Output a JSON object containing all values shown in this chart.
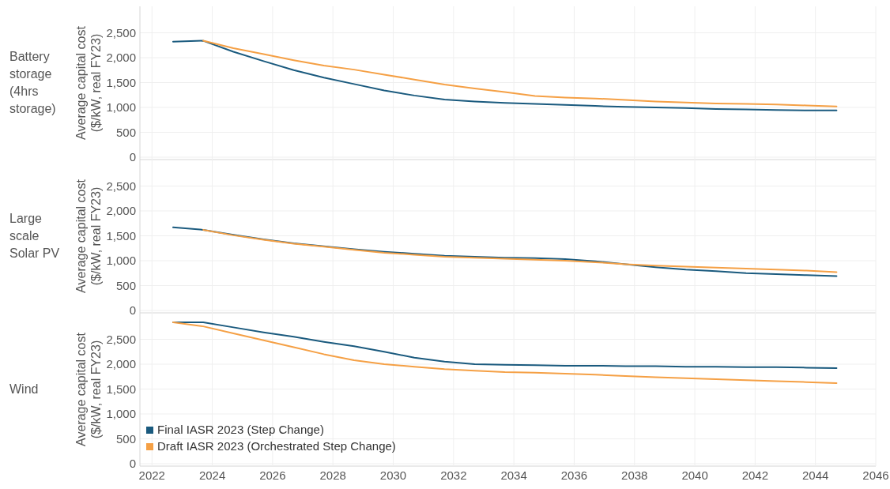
{
  "chart_data": [
    {
      "type": "line",
      "title": "Battery storage (4hrs storage)",
      "ylabel": "Average capital cost ($/kW, real FY23)",
      "x": [
        2022.7,
        2023.7,
        2024.7,
        2025.7,
        2026.7,
        2027.7,
        2028.7,
        2029.7,
        2030.7,
        2031.7,
        2032.7,
        2033.7,
        2034.7,
        2035.7,
        2036.7,
        2037.7,
        2038.7,
        2039.7,
        2040.7,
        2041.7,
        2042.7,
        2043.7,
        2044.7
      ],
      "series": [
        {
          "color": "#1a5a7e",
          "values": [
            2320,
            2340,
            2120,
            1930,
            1750,
            1600,
            1470,
            1340,
            1240,
            1160,
            1120,
            1090,
            1070,
            1050,
            1030,
            1010,
            1000,
            990,
            970,
            960,
            950,
            940,
            940
          ]
        },
        {
          "color": "#f5a045",
          "values": [
            null,
            2340,
            2190,
            2070,
            1950,
            1840,
            1760,
            1660,
            1560,
            1460,
            1380,
            1310,
            1230,
            1200,
            1180,
            1150,
            1120,
            1100,
            1080,
            1070,
            1060,
            1040,
            1020
          ]
        }
      ],
      "xlim": [
        2021.6,
        2046
      ],
      "xticks": [
        2022,
        2024,
        2026,
        2028,
        2030,
        2032,
        2034,
        2036,
        2038,
        2040,
        2042,
        2044,
        2046
      ],
      "ylim": [
        0,
        3000
      ],
      "yticks": [
        {
          "value": 0,
          "label": "0"
        },
        {
          "value": 500,
          "label": "500"
        },
        {
          "value": 1000,
          "label": "1,000"
        },
        {
          "value": 1500,
          "label": "1,500"
        },
        {
          "value": 2000,
          "label": "2,000"
        },
        {
          "value": 2500,
          "label": "2,500"
        }
      ],
      "grid": true,
      "tick_labels": "y",
      "legend": false
    },
    {
      "type": "line",
      "title": "Large scale Solar PV",
      "ylabel": "Average capital cost ($/kW, real FY23)",
      "x": [
        2022.7,
        2023.7,
        2024.7,
        2025.7,
        2026.7,
        2027.7,
        2028.7,
        2029.7,
        2030.7,
        2031.7,
        2032.7,
        2033.7,
        2034.7,
        2035.7,
        2036.7,
        2037.7,
        2038.7,
        2039.7,
        2040.7,
        2041.7,
        2042.7,
        2043.7,
        2044.7
      ],
      "series": [
        {
          "color": "#1a5a7e",
          "values": [
            1670,
            1620,
            1520,
            1430,
            1350,
            1290,
            1230,
            1180,
            1140,
            1100,
            1080,
            1060,
            1050,
            1030,
            990,
            930,
            870,
            820,
            790,
            750,
            730,
            710,
            690
          ]
        },
        {
          "color": "#f5a045",
          "values": [
            null,
            1620,
            1510,
            1420,
            1340,
            1280,
            1220,
            1160,
            1120,
            1080,
            1060,
            1040,
            1020,
            1000,
            970,
            930,
            900,
            880,
            860,
            840,
            820,
            800,
            770
          ]
        }
      ],
      "xlim": [
        2021.6,
        2046
      ],
      "xticks": [
        2022,
        2024,
        2026,
        2028,
        2030,
        2032,
        2034,
        2036,
        2038,
        2040,
        2042,
        2044,
        2046
      ],
      "ylim": [
        0,
        3000
      ],
      "yticks": [
        {
          "value": 0,
          "label": "0"
        },
        {
          "value": 500,
          "label": "500"
        },
        {
          "value": 1000,
          "label": "1,000"
        },
        {
          "value": 1500,
          "label": "1,500"
        },
        {
          "value": 2000,
          "label": "2,000"
        },
        {
          "value": 2500,
          "label": "2,500"
        }
      ],
      "grid": true,
      "tick_labels": "y",
      "legend": false
    },
    {
      "type": "line",
      "title": "Wind",
      "ylabel": "Average capital cost ($/kW, real FY23)",
      "x": [
        2022.7,
        2023.7,
        2024.7,
        2025.7,
        2026.7,
        2027.7,
        2028.7,
        2029.7,
        2030.7,
        2031.7,
        2032.7,
        2033.7,
        2034.7,
        2035.7,
        2036.7,
        2037.7,
        2038.7,
        2039.7,
        2040.7,
        2041.7,
        2042.7,
        2043.7,
        2044.7
      ],
      "series": [
        {
          "name": "Final IASR 2023 (Step Change)",
          "color": "#1a5a7e",
          "values": [
            2840,
            2840,
            2740,
            2640,
            2550,
            2450,
            2360,
            2250,
            2130,
            2050,
            2000,
            1990,
            1980,
            1970,
            1970,
            1960,
            1960,
            1950,
            1950,
            1940,
            1940,
            1930,
            1920
          ]
        },
        {
          "name": "Draft IASR 2023 (Orchestrated Step Change)",
          "color": "#f5a045",
          "values": [
            2840,
            2760,
            2620,
            2480,
            2340,
            2200,
            2080,
            2000,
            1950,
            1900,
            1870,
            1840,
            1830,
            1810,
            1790,
            1760,
            1740,
            1720,
            1700,
            1680,
            1660,
            1640,
            1620
          ]
        }
      ],
      "xlim": [
        2021.6,
        2046
      ],
      "xticks": [
        2022,
        2024,
        2026,
        2028,
        2030,
        2032,
        2034,
        2036,
        2038,
        2040,
        2042,
        2044,
        2046
      ],
      "ylim": [
        0,
        3000
      ],
      "yticks": [
        {
          "value": 0,
          "label": "0"
        },
        {
          "value": 500,
          "label": "500"
        },
        {
          "value": 1000,
          "label": "1,000"
        },
        {
          "value": 1500,
          "label": "1,500"
        },
        {
          "value": 2000,
          "label": "2,000"
        },
        {
          "value": 2500,
          "label": "2,500"
        }
      ],
      "grid": true,
      "legend": "bottom left"
    }
  ]
}
